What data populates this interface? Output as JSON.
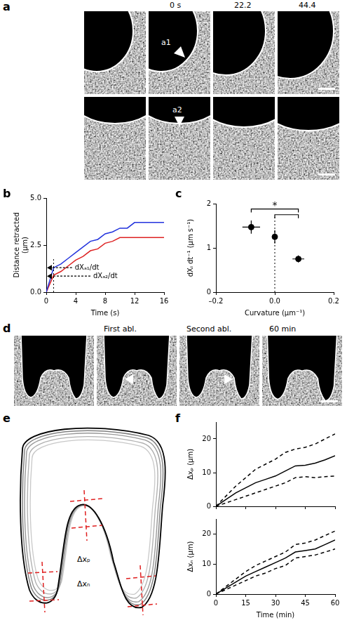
{
  "figure": {
    "a": {
      "panel": "a",
      "time_labels": [
        "0 s",
        "22.2",
        "44.4"
      ],
      "markers": [
        "a1",
        "a2"
      ]
    },
    "d": {
      "panel": "d",
      "frame_labels": [
        "First abl.",
        "Second abl.",
        "60 min"
      ]
    },
    "e": {
      "panel": "e",
      "measures": [
        "Δxₚ",
        "Δxₙ"
      ]
    }
  },
  "chart_data": [
    {
      "panel": "b",
      "type": "line",
      "x": [
        0,
        1,
        2,
        3,
        4,
        5,
        6,
        7,
        8,
        9,
        10,
        11,
        12,
        13,
        14,
        15,
        16
      ],
      "series": [
        {
          "color": "#2233dd",
          "values": [
            0,
            1.3,
            1.5,
            1.8,
            2.1,
            2.4,
            2.7,
            2.8,
            3.1,
            3.2,
            3.4,
            3.4,
            3.7,
            3.7,
            3.7,
            3.7,
            3.7
          ]
        },
        {
          "color": "#dd2222",
          "values": [
            0,
            0.9,
            1.1,
            1.4,
            1.7,
            1.9,
            2.2,
            2.3,
            2.6,
            2.7,
            2.9,
            2.9,
            2.9,
            2.9,
            2.9,
            2.9,
            2.9
          ]
        }
      ],
      "xlim": [
        0,
        16
      ],
      "xticks": [
        0,
        4,
        8,
        12,
        16
      ],
      "ylim": [
        0,
        5
      ],
      "yticks": [
        {
          "value": 0,
          "label": "0.0"
        },
        2.5,
        {
          "value": 5,
          "label": "5.0"
        }
      ],
      "x_label": "Time (s)",
      "y_label": "Distance retracted (μm)",
      "grid": false,
      "vline": 1,
      "annotations": [
        {
          "text": "dXₐ₁/dt",
          "x": 3.5,
          "y": 1.3
        },
        {
          "text": "dXₐ₂/dt",
          "x": 6,
          "y": 0.85
        }
      ]
    },
    {
      "panel": "c",
      "type": "scatter",
      "marker": "circle",
      "color": "#000000",
      "x": [
        -0.08,
        0,
        0.08
      ],
      "values": [
        1.47,
        1.25,
        0.75
      ],
      "x_err": [
        0.03,
        0.003,
        0.02
      ],
      "y_err": [
        0.15,
        0.15,
        0.08
      ],
      "xlim": [
        -0.2,
        0.2
      ],
      "xticks": [
        {
          "value": -0.2,
          "label": "–0.2"
        },
        {
          "value": 0,
          "label": "0.0"
        },
        0.2
      ],
      "ylim": [
        0,
        2
      ],
      "yticks": [
        0,
        1,
        2
      ],
      "x_label": "Curvature (μm⁻¹)",
      "y_label": "dXᵢ dt⁻¹ (μm s⁻¹)",
      "grid": false,
      "vline": {
        "x": 0,
        "y_end": 1.7
      },
      "brackets": [
        {
          "x": [
            -0.08,
            0.08
          ],
          "y": 1.88,
          "text": "*"
        },
        {
          "x": [
            0,
            0.08
          ],
          "y": 1.75
        }
      ]
    },
    {
      "panel": "f",
      "type": "line",
      "x": [
        0,
        5,
        10,
        15,
        20,
        25,
        30,
        35,
        40,
        45,
        50,
        55,
        60
      ],
      "series": [
        {
          "color": "#000000",
          "line_style": "solid",
          "values": [
            0,
            2,
            4,
            5.5,
            7,
            8,
            9,
            10.5,
            12,
            12.2,
            12.8,
            13.8,
            15
          ]
        },
        {
          "color": "#000000",
          "line_style": "dashed",
          "values": [
            0,
            3,
            6,
            8.5,
            11,
            12.5,
            14,
            16,
            17,
            17.5,
            18.5,
            20,
            21.5
          ]
        },
        {
          "color": "#000000",
          "line_style": "dashed",
          "values": [
            0,
            1,
            2,
            3,
            4,
            5,
            6,
            7,
            8.5,
            8.8,
            8.5,
            8.8,
            9
          ]
        }
      ],
      "xlim": [
        0,
        60
      ],
      "xticks": [
        0,
        15,
        30,
        45,
        60
      ],
      "ylim": [
        0,
        25
      ],
      "yticks": [
        0,
        10,
        20
      ],
      "y_label": "Δxₚ (μm)",
      "tick_labels": "y",
      "grid": false
    },
    {
      "type": "line",
      "x": [
        0,
        5,
        10,
        15,
        20,
        25,
        30,
        35,
        40,
        45,
        50,
        55,
        60
      ],
      "series": [
        {
          "color": "#000000",
          "line_style": "solid",
          "values": [
            0,
            2,
            4,
            6,
            7.5,
            9,
            10.5,
            12,
            14,
            14.5,
            15,
            16.5,
            18
          ]
        },
        {
          "color": "#000000",
          "line_style": "dashed",
          "values": [
            0,
            2.5,
            5,
            7.5,
            9.5,
            11,
            12.5,
            14,
            16.5,
            17,
            18,
            19.5,
            21
          ]
        },
        {
          "color": "#000000",
          "line_style": "dashed",
          "values": [
            0,
            1.5,
            3,
            4.5,
            6,
            7,
            8.5,
            9.5,
            12,
            12.5,
            13,
            14,
            15
          ]
        }
      ],
      "xlim": [
        0,
        60
      ],
      "xticks": [
        0,
        15,
        30,
        45,
        60
      ],
      "ylim": [
        0,
        25
      ],
      "yticks": [
        0,
        10,
        20
      ],
      "x_label": "Time (min)",
      "y_label": "Δxₙ (μm)",
      "grid": false
    }
  ]
}
